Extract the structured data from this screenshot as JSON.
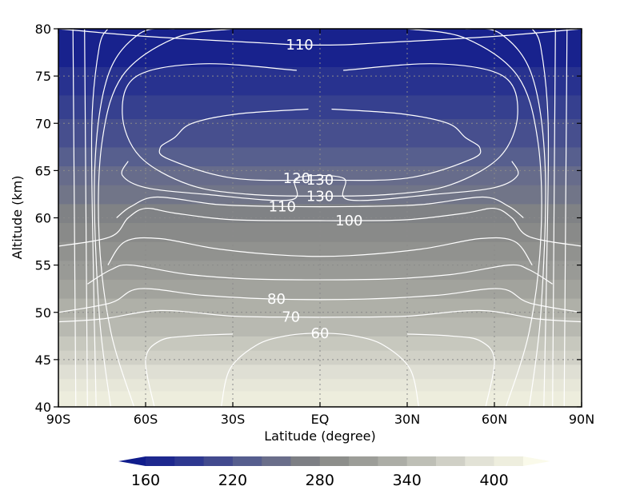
{
  "chart_data": {
    "type": "heatmap",
    "xlabel": "Latitude (degree)",
    "ylabel": "Altitude (km)",
    "xlim": [
      -90,
      90
    ],
    "ylim": [
      40,
      80
    ],
    "x_ticks": [
      {
        "value": -90,
        "label": "90S"
      },
      {
        "value": -60,
        "label": "60S"
      },
      {
        "value": -30,
        "label": "30S"
      },
      {
        "value": 0,
        "label": "EQ"
      },
      {
        "value": 30,
        "label": "30N"
      },
      {
        "value": 60,
        "label": "60N"
      },
      {
        "value": 90,
        "label": "90N"
      }
    ],
    "y_ticks": [
      {
        "value": 40,
        "label": "40"
      },
      {
        "value": 45,
        "label": "45"
      },
      {
        "value": 50,
        "label": "50"
      },
      {
        "value": 55,
        "label": "55"
      },
      {
        "value": 60,
        "label": "60"
      },
      {
        "value": 65,
        "label": "65"
      },
      {
        "value": 70,
        "label": "70"
      },
      {
        "value": 75,
        "label": "75"
      },
      {
        "value": 80,
        "label": "80"
      }
    ],
    "grid": true,
    "shading": {
      "field_bands": [
        {
          "y0": 40,
          "y1": 41.7,
          "value": 390
        },
        {
          "y0": 41.7,
          "y1": 43.0,
          "value": 380
        },
        {
          "y0": 43.0,
          "y1": 44.5,
          "value": 370
        },
        {
          "y0": 44.5,
          "y1": 46.0,
          "value": 355
        },
        {
          "y0": 46.0,
          "y1": 47.5,
          "value": 345
        },
        {
          "y0": 47.5,
          "y1": 49.5,
          "value": 330
        },
        {
          "y0": 49.5,
          "y1": 51.5,
          "value": 320
        },
        {
          "y0": 51.5,
          "y1": 53.5,
          "value": 305
        },
        {
          "y0": 53.5,
          "y1": 55.5,
          "value": 295
        },
        {
          "y0": 55.5,
          "y1": 57.5,
          "value": 285
        },
        {
          "y0": 57.5,
          "y1": 59.5,
          "value": 275
        },
        {
          "y0": 59.5,
          "y1": 61.5,
          "value": 265
        },
        {
          "y0": 61.5,
          "y1": 63.5,
          "value": 250
        },
        {
          "y0": 63.5,
          "y1": 65.5,
          "value": 240
        },
        {
          "y0": 65.5,
          "y1": 67.5,
          "value": 225
        },
        {
          "y0": 67.5,
          "y1": 70.5,
          "value": 210
        },
        {
          "y0": 70.5,
          "y1": 73.0,
          "value": 195
        },
        {
          "y0": 73.0,
          "y1": 76.0,
          "value": 180
        },
        {
          "y0": 76.0,
          "y1": 80,
          "value": 160
        }
      ]
    },
    "colorbar": {
      "ticks": [
        "160",
        "220",
        "280",
        "340",
        "400"
      ],
      "colors": [
        "#101c8c",
        "#1e288e",
        "#2e3890",
        "#424a8e",
        "#565e8e",
        "#6a6e8a",
        "#7d7f84",
        "#8d8e8b",
        "#9c9d98",
        "#acada6",
        "#bebfb6",
        "#d0d0c6",
        "#e2e2d6",
        "#eeeede",
        "#fafaea"
      ]
    },
    "contours": [
      {
        "level": "",
        "points": [
          [
            -84,
            40
          ],
          [
            -84.5,
            60
          ],
          [
            -85,
            80
          ]
        ]
      },
      {
        "level": "",
        "points": [
          [
            84,
            40
          ],
          [
            84.5,
            60
          ],
          [
            85,
            80
          ]
        ]
      },
      {
        "level": "",
        "points": [
          [
            -80,
            40
          ],
          [
            -80.5,
            60
          ],
          [
            -81,
            80
          ]
        ]
      },
      {
        "level": "",
        "points": [
          [
            80,
            40
          ],
          [
            80.5,
            60
          ],
          [
            81,
            80
          ]
        ]
      },
      {
        "level": "",
        "points": [
          [
            -77,
            40
          ],
          [
            -78,
            55
          ],
          [
            -78.5,
            70
          ],
          [
            -76,
            78
          ],
          [
            -73,
            80
          ]
        ]
      },
      {
        "level": "",
        "points": [
          [
            77,
            40
          ],
          [
            78,
            55
          ],
          [
            78.5,
            70
          ],
          [
            76,
            78
          ],
          [
            73,
            80
          ]
        ]
      },
      {
        "level": "",
        "points": [
          [
            -72,
            40
          ],
          [
            -76,
            50
          ],
          [
            -77.5,
            65
          ],
          [
            -73,
            75
          ],
          [
            -62,
            79.5
          ],
          [
            -50,
            80
          ]
        ]
      },
      {
        "level": "",
        "points": [
          [
            72,
            40
          ],
          [
            76,
            50
          ],
          [
            77.5,
            65
          ],
          [
            73,
            75
          ],
          [
            62,
            79.5
          ],
          [
            50,
            80
          ]
        ]
      },
      {
        "level": "",
        "points": [
          [
            -64,
            40
          ],
          [
            -72,
            48
          ],
          [
            -76,
            58
          ],
          [
            -75,
            68
          ],
          [
            -68,
            75
          ],
          [
            -50,
            79
          ],
          [
            -30,
            80
          ]
        ]
      },
      {
        "level": "",
        "points": [
          [
            64,
            40
          ],
          [
            72,
            48
          ],
          [
            76,
            58
          ],
          [
            75,
            68
          ],
          [
            68,
            75
          ],
          [
            50,
            79
          ],
          [
            30,
            80
          ]
        ]
      },
      {
        "level": "110",
        "points": [
          [
            -90,
            80
          ],
          [
            -60,
            79.2
          ],
          [
            -20,
            78.5
          ],
          [
            -7,
            78.3
          ],
          [
            7,
            78.3
          ],
          [
            20,
            78.5
          ],
          [
            60,
            79.2
          ],
          [
            90,
            80
          ]
        ]
      },
      {
        "level": "130",
        "points": [
          [
            -8,
            75.6
          ],
          [
            -40,
            76.3
          ],
          [
            -63,
            75
          ],
          [
            -68,
            71
          ],
          [
            -62,
            66.5
          ],
          [
            -45,
            63.5
          ],
          [
            -25,
            62.5
          ],
          [
            0,
            62.3
          ],
          [
            25,
            62.5
          ],
          [
            45,
            63.5
          ],
          [
            62,
            66.5
          ],
          [
            68,
            71
          ],
          [
            63,
            75
          ],
          [
            40,
            76.3
          ],
          [
            8,
            75.6
          ]
        ]
      },
      {
        "level": "130",
        "points": [
          [
            -4,
            71.5
          ],
          [
            -28,
            71.0
          ],
          [
            -44,
            70.0
          ],
          [
            -50,
            68.5
          ],
          [
            -55,
            67.4
          ],
          [
            -52,
            66.2
          ],
          [
            -30,
            64.2
          ],
          [
            0,
            64.0
          ],
          [
            30,
            64.2
          ],
          [
            52,
            66.2
          ],
          [
            55,
            67.4
          ],
          [
            50,
            68.5
          ],
          [
            44,
            70.0
          ],
          [
            28,
            71.0
          ],
          [
            4,
            71.5
          ]
        ]
      },
      {
        "level": "120",
        "points": [
          [
            -66,
            66
          ],
          [
            -68,
            64.5
          ],
          [
            -60,
            63.2
          ],
          [
            -40,
            62.5
          ],
          [
            -10,
            61.9
          ],
          [
            -8,
            64.2
          ],
          [
            8,
            64.2
          ],
          [
            10,
            61.9
          ],
          [
            40,
            62.5
          ],
          [
            60,
            63.2
          ],
          [
            68,
            64.5
          ],
          [
            66,
            66
          ]
        ]
      },
      {
        "level": "110",
        "points": [
          [
            -70,
            60
          ],
          [
            -65,
            61.2
          ],
          [
            -56,
            62.2
          ],
          [
            -35,
            61.4
          ],
          [
            -13,
            61.2
          ],
          [
            13,
            61.2
          ],
          [
            35,
            61.4
          ],
          [
            56,
            62.2
          ],
          [
            65,
            61.2
          ],
          [
            70,
            60
          ]
        ]
      },
      {
        "level": "100",
        "points": [
          [
            -90,
            57
          ],
          [
            -72,
            58
          ],
          [
            -66,
            60
          ],
          [
            -60,
            61
          ],
          [
            -50,
            60.5
          ],
          [
            -30,
            59.8
          ],
          [
            0,
            59.7
          ],
          [
            10,
            59.7
          ],
          [
            30,
            59.8
          ],
          [
            50,
            60.5
          ],
          [
            60,
            61
          ],
          [
            66,
            60
          ],
          [
            72,
            58
          ],
          [
            90,
            57
          ]
        ]
      },
      {
        "level": "",
        "points": [
          [
            -73,
            55
          ],
          [
            -67,
            57.5
          ],
          [
            -55,
            57.8
          ],
          [
            -35,
            56.7
          ],
          [
            -10,
            56
          ],
          [
            10,
            56
          ],
          [
            35,
            56.7
          ],
          [
            55,
            57.8
          ],
          [
            67,
            57.5
          ],
          [
            73,
            55
          ]
        ]
      },
      {
        "level": "",
        "points": [
          [
            -80,
            53
          ],
          [
            -72,
            54.5
          ],
          [
            -65,
            55
          ],
          [
            -45,
            54
          ],
          [
            -20,
            53.5
          ],
          [
            20,
            53.5
          ],
          [
            45,
            54
          ],
          [
            65,
            55
          ],
          [
            72,
            54.5
          ],
          [
            80,
            53
          ]
        ]
      },
      {
        "level": "80",
        "points": [
          [
            -90,
            50
          ],
          [
            -72,
            51
          ],
          [
            -62,
            52.5
          ],
          [
            -40,
            51.8
          ],
          [
            -15,
            51.4
          ],
          [
            15,
            51.4
          ],
          [
            40,
            51.8
          ],
          [
            62,
            52.5
          ],
          [
            72,
            51
          ],
          [
            90,
            50
          ]
        ]
      },
      {
        "level": "70",
        "points": [
          [
            -90,
            49
          ],
          [
            -75,
            49.3
          ],
          [
            -55,
            50.2
          ],
          [
            -30,
            49.6
          ],
          [
            -10,
            49.5
          ],
          [
            10,
            49.5
          ],
          [
            30,
            49.6
          ],
          [
            55,
            50.2
          ],
          [
            75,
            49.3
          ],
          [
            90,
            49
          ]
        ]
      },
      {
        "level": "60",
        "points": [
          [
            -34,
            40
          ],
          [
            -31,
            44
          ],
          [
            -22,
            46.5
          ],
          [
            -12,
            47.5
          ],
          [
            0,
            47.8
          ],
          [
            12,
            47.5
          ],
          [
            22,
            46.5
          ],
          [
            31,
            44
          ],
          [
            34,
            40
          ]
        ]
      },
      {
        "level": "",
        "points": [
          [
            -57,
            40
          ],
          [
            -60,
            45
          ],
          [
            -55,
            47
          ],
          [
            -45,
            47.5
          ],
          [
            -30,
            47.7
          ]
        ]
      },
      {
        "level": "",
        "points": [
          [
            57,
            40
          ],
          [
            60,
            45
          ],
          [
            55,
            47
          ],
          [
            45,
            47.5
          ],
          [
            30,
            47.7
          ]
        ]
      }
    ]
  }
}
